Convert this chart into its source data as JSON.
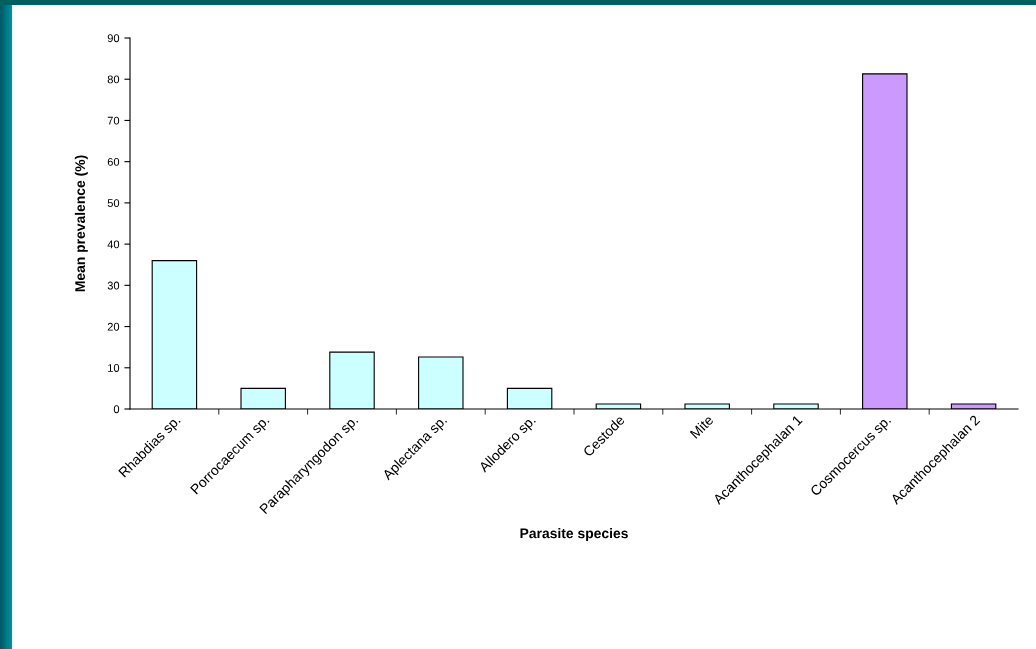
{
  "chart_data": {
    "type": "bar",
    "xlabel": "Parasite species",
    "ylabel": "Mean prevalence (%)",
    "categories": [
      "Rhabdias sp.",
      "Porrocaecum sp.",
      "Parapharyngodon sp.",
      "Aplectana sp.",
      "Allodero sp.",
      "Cestode",
      "Mite",
      "Acanthocephalan 1",
      "Cosmocercus sp.",
      "Acanthocephalan 2"
    ],
    "values": [
      36,
      5,
      13.8,
      12.6,
      5,
      1.2,
      1.2,
      1.2,
      81.3,
      1.2
    ],
    "colors": [
      "#ccffff",
      "#ccffff",
      "#ccffff",
      "#ccffff",
      "#ccffff",
      "#ccffff",
      "#ccffff",
      "#ccffff",
      "#cc99ff",
      "#cc99ff"
    ],
    "ylim": [
      0,
      90
    ],
    "yticks": [
      0,
      10,
      20,
      30,
      40,
      50,
      60,
      70,
      80,
      90
    ],
    "grid": false,
    "legend": false
  }
}
